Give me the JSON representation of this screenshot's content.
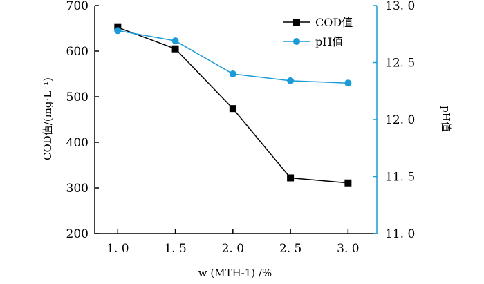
{
  "chart_data": {
    "type": "line",
    "x": [
      1.0,
      1.5,
      2.0,
      2.5,
      3.0
    ],
    "x_tick_labels": [
      "1. 0",
      "1. 5",
      "2. 0",
      "2. 5",
      "3. 0"
    ],
    "xlim": [
      0.8,
      3.25
    ],
    "xlabel": "w (MTH-1) /%",
    "ylabel_left": "COD值/(mg·L⁻¹)",
    "ylabel_right": "pH值",
    "ylim_left": [
      200,
      700
    ],
    "ylim_right": [
      11.0,
      13.0
    ],
    "y_left_ticks": [
      200,
      300,
      400,
      500,
      600,
      700
    ],
    "y_left_tick_labels": [
      "200",
      "300",
      "400",
      "500",
      "600",
      "700"
    ],
    "y_right_ticks": [
      11.0,
      11.5,
      12.0,
      12.5,
      13.0
    ],
    "y_right_tick_labels": [
      "11. 0",
      "11. 5",
      "12. 0",
      "12. 5",
      "13. 0"
    ],
    "grid": false,
    "legend_position": "top-right",
    "series": [
      {
        "name": "COD值",
        "axis": "left",
        "marker": "square",
        "color": "#000000",
        "values": [
          652,
          605,
          474,
          322,
          311
        ]
      },
      {
        "name": "pH值",
        "axis": "right",
        "marker": "circle",
        "color": "#1a9bd7",
        "values": [
          12.78,
          12.69,
          12.4,
          12.34,
          12.32
        ]
      }
    ]
  }
}
